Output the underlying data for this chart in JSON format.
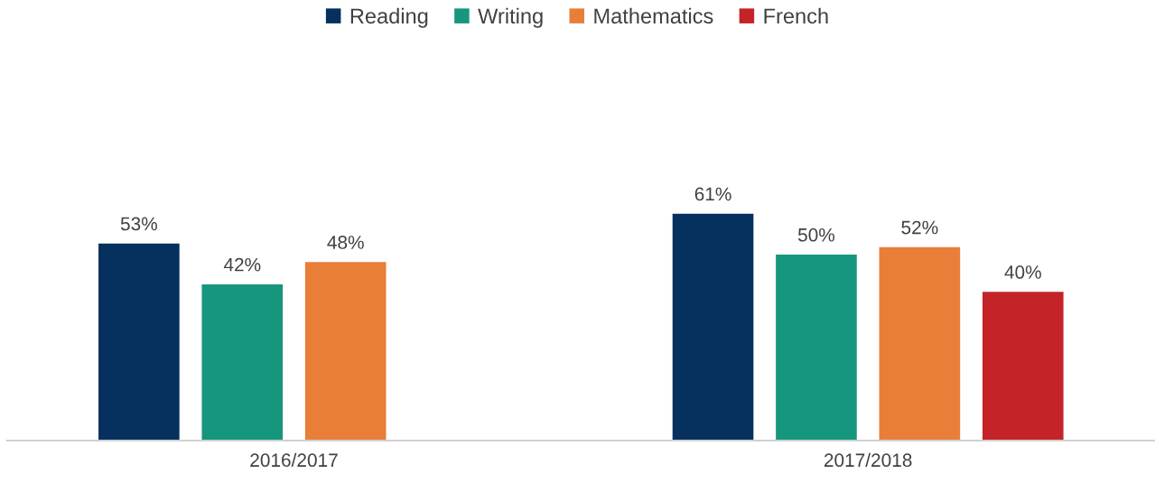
{
  "chart_data": {
    "type": "bar",
    "categories": [
      "2016/2017",
      "2017/2018"
    ],
    "grid": false,
    "legend": "top",
    "series": [
      {
        "name": "Reading",
        "color": "#06305e",
        "values": [
          53,
          61
        ],
        "value_labels": [
          "53%",
          "61%"
        ]
      },
      {
        "name": "Writing",
        "color": "#16967c",
        "values": [
          42,
          50
        ],
        "value_labels": [
          "42%",
          "50%"
        ]
      },
      {
        "name": "Mathematics",
        "color": "#e87e38",
        "values": [
          48,
          52
        ],
        "value_labels": [
          "48%",
          "52%"
        ]
      },
      {
        "name": "French",
        "color": "#c42327",
        "values": [
          null,
          40
        ],
        "value_labels": [
          null,
          "40%"
        ]
      }
    ]
  }
}
